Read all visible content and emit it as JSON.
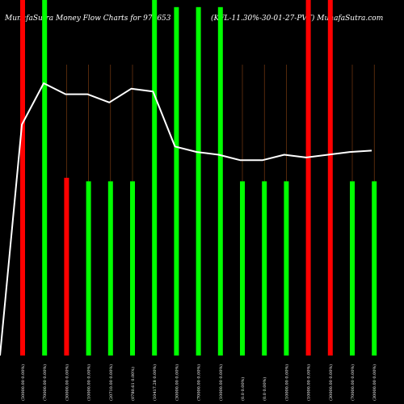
{
  "chart_data": {
    "type": "bar",
    "title_left": "MunafaSutra  Money Flow  Charts for 976653",
    "title_right": "(KFL-11.30%-30-01-27-PVT) MunafaSutra.com",
    "categories": [
      "(50000.00 0.00%)",
      "(70000.00 0.00%)",
      "(30000.00 0.00%)",
      "(10000.00 0.00%)",
      "(20710.00 0.00%)",
      "(0780.61 0.00%)",
      "(10417.28 0.00%)",
      "(30000.00 0.00%)",
      "(70000.00 0.00%)",
      "(10000.00 0.00%)",
      "(0.0 0.00%)",
      "(0.0 0.00%)",
      "(10000.00 0.00%)",
      "(10000.00 0.00%)",
      "(30000.00 0.00%)",
      "(70000.00 0.00%)",
      "(30000.00 0.00%)"
    ],
    "bar_height": [
      1.0,
      1.0,
      0.5,
      0.49,
      0.49,
      0.49,
      1.0,
      0.98,
      0.98,
      0.98,
      0.49,
      0.49,
      0.49,
      1.0,
      1.0,
      0.49,
      0.49
    ],
    "bar_color": [
      "red",
      "green",
      "red",
      "green",
      "green",
      "green",
      "green",
      "green",
      "green",
      "green",
      "green",
      "green",
      "green",
      "red",
      "red",
      "green",
      "green"
    ],
    "line_values": [
      0.0,
      0.84,
      0.99,
      0.95,
      0.95,
      0.92,
      0.97,
      0.96,
      0.76,
      0.74,
      0.73,
      0.71,
      0.71,
      0.73,
      0.72,
      0.73,
      0.74,
      0.745
    ],
    "colors": {
      "green": "#00ff00",
      "red": "#ff0000",
      "background": "#000000",
      "grid": "#8b4513",
      "line": "#ffffff"
    }
  }
}
